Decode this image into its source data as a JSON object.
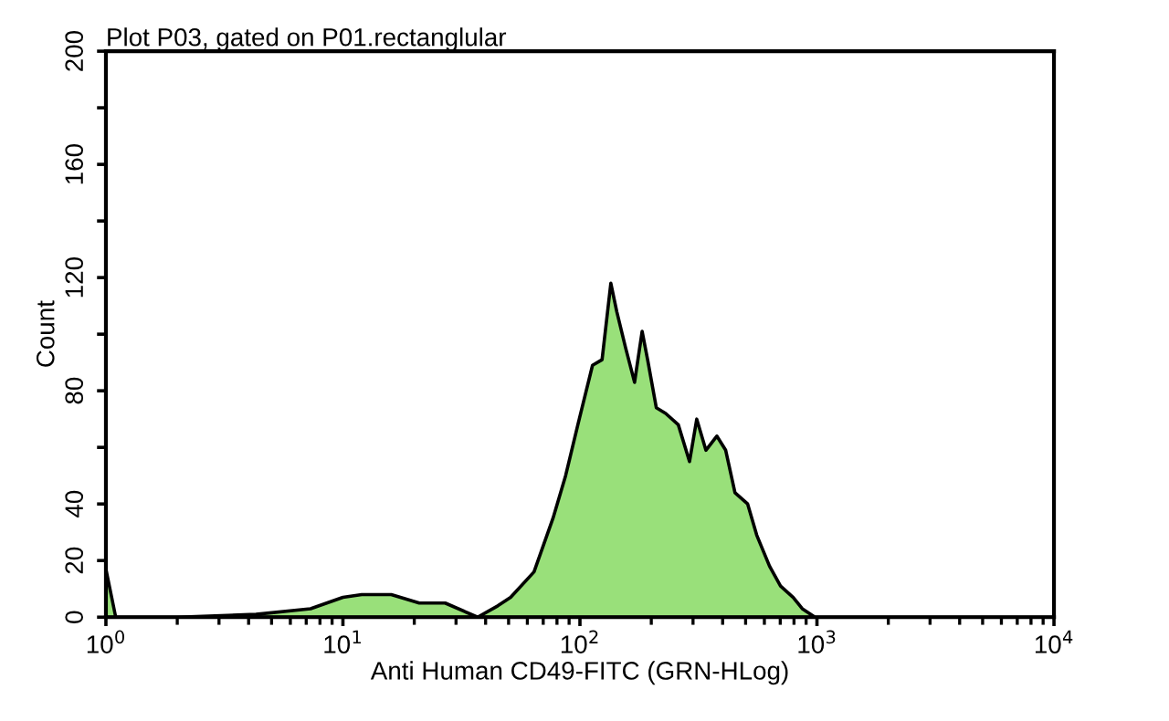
{
  "chart_data": {
    "type": "area",
    "title": "Plot P03, gated on P01.rectanglular",
    "xlabel": "Anti Human CD49-FITC (GRN-HLog)",
    "ylabel": "Count",
    "log": "x",
    "xlim": [
      1,
      10000
    ],
    "xticks": [
      {
        "value": 1,
        "label": "10$^{0}$"
      },
      {
        "value": 10,
        "label": "10$^{1}$"
      },
      {
        "value": 100,
        "label": "10$^{2}$"
      },
      {
        "value": 1000,
        "label": "10$^{3}$"
      },
      {
        "value": 10000,
        "label": "10$^{4}$"
      }
    ],
    "ylim": [
      0,
      200
    ],
    "yticks": [
      0,
      20,
      40,
      {
        "value": 60,
        "label": null
      },
      80,
      {
        "value": 100,
        "label": null
      },
      120,
      {
        "value": 140,
        "label": null
      },
      160,
      {
        "value": 180,
        "label": null
      },
      200
    ],
    "grid": false,
    "series": [
      {
        "color": "#99e07a",
        "x": [
          1,
          1.1,
          2,
          4.3,
          7.3,
          10,
          12,
          16,
          21,
          27,
          37,
          45,
          51,
          64,
          77,
          87,
          98,
          113,
          124,
          135,
          143,
          156,
          170,
          183,
          193,
          210,
          230,
          260,
          290,
          311,
          340,
          378,
          412,
          451,
          510,
          557,
          631,
          702,
          794,
          867,
          981,
          10000
        ],
        "values": [
          17,
          0,
          0,
          1,
          3,
          7,
          8,
          8,
          5,
          5,
          0,
          4,
          7,
          16,
          35,
          50,
          68,
          89,
          91,
          118,
          108,
          95,
          83,
          101,
          91,
          74,
          72,
          68,
          55,
          70,
          59,
          64,
          59,
          44,
          40,
          29,
          18,
          11,
          7,
          3,
          0,
          0
        ]
      }
    ]
  }
}
